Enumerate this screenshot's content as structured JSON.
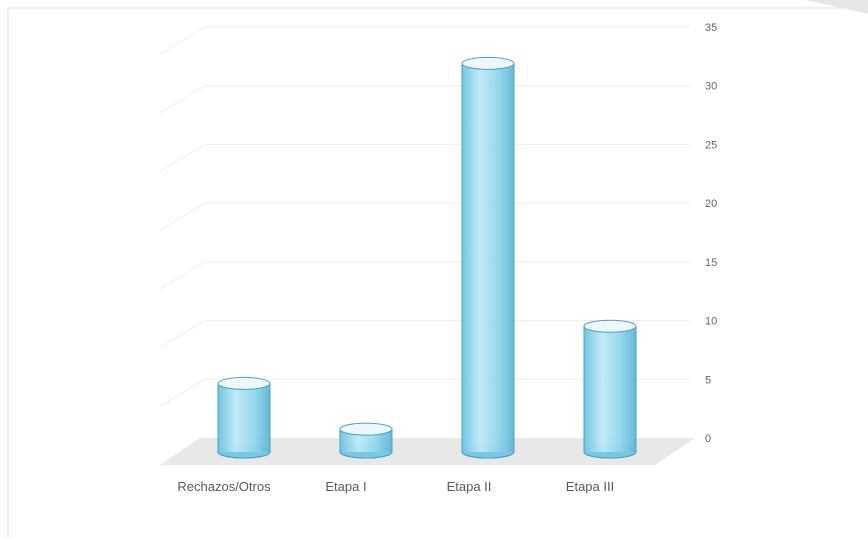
{
  "chart_data": {
    "type": "bar",
    "style": "3d-cylinder",
    "categories": [
      "Rechazos/Otros",
      "Etapa I",
      "Etapa II",
      "Etapa III"
    ],
    "values": [
      6,
      2,
      34,
      11
    ],
    "y_ticks": [
      "0",
      "5",
      "10",
      "15",
      "20",
      "25",
      "30",
      "35"
    ],
    "ylim": [
      0,
      35
    ],
    "y_axis_side": "right",
    "grid": true,
    "legend": "none",
    "title": "",
    "xlabel": "",
    "ylabel": "",
    "colors": {
      "bar_fill": "#8fd6ec",
      "bar_stroke": "#4aa0c4",
      "bar_top": "#eef8fc",
      "floor": "#e8e8e8",
      "gridline": "#eeeeee",
      "tick_text": "#666666",
      "category_text": "#595959"
    }
  }
}
